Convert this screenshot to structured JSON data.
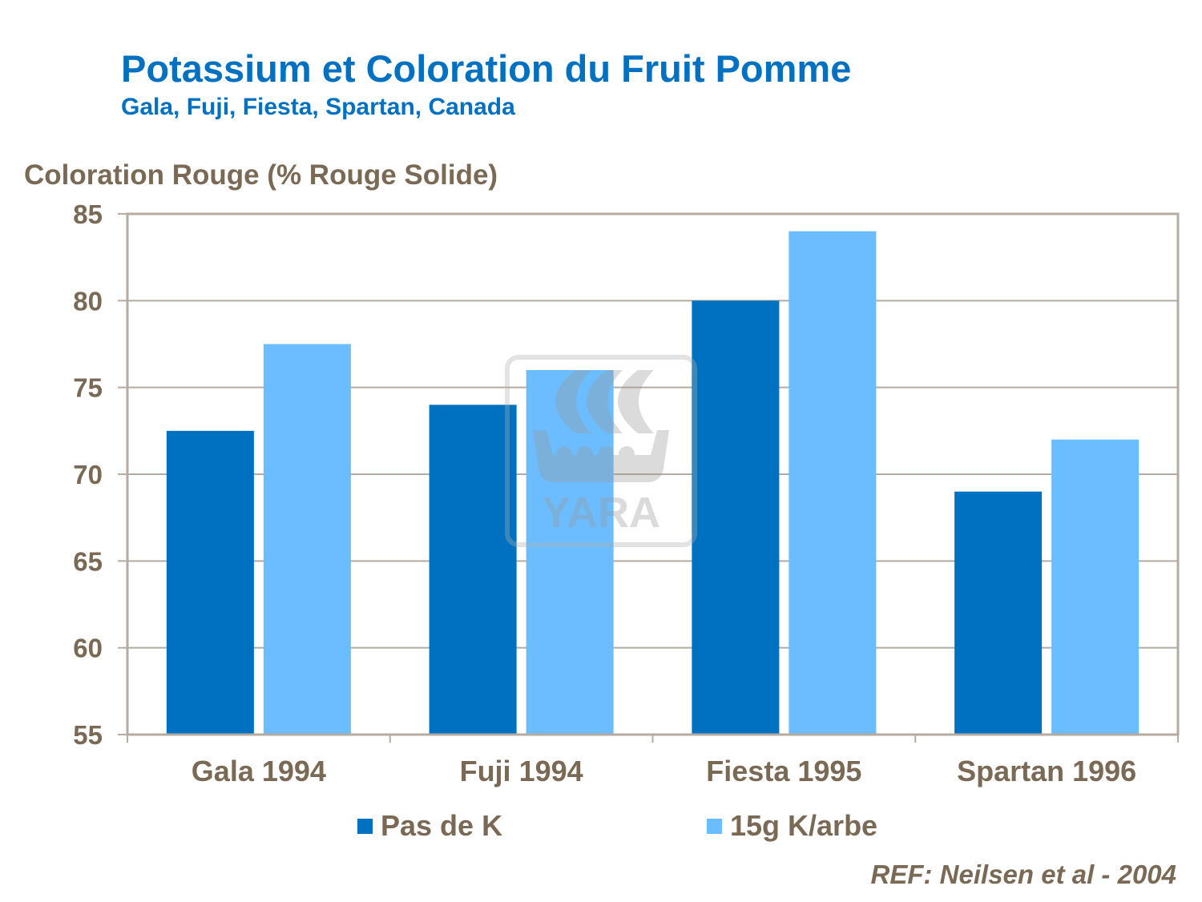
{
  "chart_data": {
    "type": "bar",
    "title": "Potassium et Coloration du Fruit Pomme",
    "subtitle": "Gala, Fuji, Fiesta, Spartan, Canada",
    "ylabel": "Coloration Rouge (% Rouge Solide)",
    "xlabel": "",
    "categories": [
      "Gala 1994",
      "Fuji 1994",
      "Fiesta 1995",
      "Spartan 1996"
    ],
    "series": [
      {
        "name": "Pas de K",
        "values": [
          72.5,
          74,
          80,
          69
        ],
        "color": "#0070c0"
      },
      {
        "name": "15g K/arbe",
        "values": [
          77.5,
          76,
          84,
          72
        ],
        "color": "#6bbdff"
      }
    ],
    "ylim": [
      55,
      85
    ],
    "yticks": [
      "55",
      "60",
      "65",
      "70",
      "75",
      "80",
      "85"
    ],
    "grid": true,
    "legend_position": "bottom",
    "reference": "REF: Neilsen et al - 2004",
    "watermark": "YARA"
  }
}
